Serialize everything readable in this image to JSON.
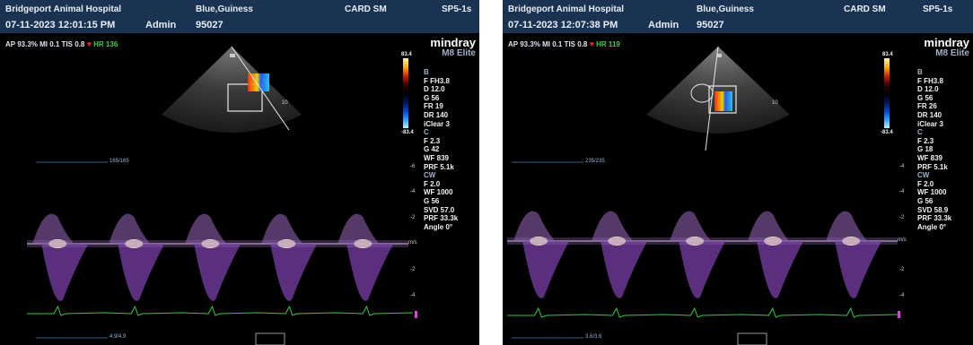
{
  "panels": [
    {
      "hospital": "Bridgeport Animal Hospital",
      "patient": "Blue,Guiness",
      "preset": "CARD SM",
      "probe": "SP5-1s",
      "datetime": "07-11-2023  12:01:15 PM",
      "operator": "Admin",
      "patient_id": "95027",
      "status_prefix": "AP 93.3%  MI 0.1  TIS 0.8",
      "hr": "HR 136",
      "brand": "mindray",
      "model": "M8 Elite",
      "colorbar_top": "83.4",
      "colorbar_bottom": "-83.4",
      "params": [
        {
          "t": "h",
          "v": "B"
        },
        {
          "t": "v",
          "v": "F FH3.8"
        },
        {
          "t": "v",
          "v": "D 12.0"
        },
        {
          "t": "v",
          "v": "G 56"
        },
        {
          "t": "v",
          "v": "FR 19"
        },
        {
          "t": "v",
          "v": "DR 140"
        },
        {
          "t": "v",
          "v": "iClear 3"
        },
        {
          "t": "h",
          "v": "C"
        },
        {
          "t": "v",
          "v": "F 2.3"
        },
        {
          "t": "v",
          "v": "G 42"
        },
        {
          "t": "v",
          "v": "WF 839"
        },
        {
          "t": "v",
          "v": "PRF 5.1k"
        },
        {
          "t": "h",
          "v": "CW"
        },
        {
          "t": "v",
          "v": "F 2.0"
        },
        {
          "t": "v",
          "v": "WF 1000"
        },
        {
          "t": "v",
          "v": "G 56"
        },
        {
          "t": "v",
          "v": "SVD 57.0"
        },
        {
          "t": "v",
          "v": "PRF 33.3k"
        },
        {
          "t": "v",
          "v": "Angle 0°"
        }
      ],
      "depth_label": "165/165",
      "bottom_label": "4.9/4.9",
      "unit": "m/s",
      "ticks_pos": [
        "-6",
        "-4",
        "-2"
      ],
      "ticks_neg": [
        "-2",
        "-4"
      ],
      "sector_tick": "10"
    },
    {
      "hospital": "Bridgeport Animal Hospital",
      "patient": "Blue,Guiness",
      "preset": "CARD SM",
      "probe": "SP5-1s",
      "datetime": "07-11-2023  12:07:38 PM",
      "operator": "Admin",
      "patient_id": "95027",
      "status_prefix": "AP 93.3%  MI 0.1  TIS 0.8",
      "hr": "HR 119",
      "brand": "mindray",
      "model": "M8 Elite",
      "colorbar_top": "83.4",
      "colorbar_bottom": "-83.4",
      "params": [
        {
          "t": "h",
          "v": "B"
        },
        {
          "t": "v",
          "v": "F FH3.8"
        },
        {
          "t": "v",
          "v": "D 12.0"
        },
        {
          "t": "v",
          "v": "G 56"
        },
        {
          "t": "v",
          "v": "FR 26"
        },
        {
          "t": "v",
          "v": "DR 140"
        },
        {
          "t": "v",
          "v": "iClear 3"
        },
        {
          "t": "h",
          "v": "C"
        },
        {
          "t": "v",
          "v": "F 2.3"
        },
        {
          "t": "v",
          "v": "G 18"
        },
        {
          "t": "v",
          "v": "WF 839"
        },
        {
          "t": "v",
          "v": "PRF 5.1k"
        },
        {
          "t": "h",
          "v": "CW"
        },
        {
          "t": "v",
          "v": "F 2.0"
        },
        {
          "t": "v",
          "v": "WF 1000"
        },
        {
          "t": "v",
          "v": "G 56"
        },
        {
          "t": "v",
          "v": "SVD 58.9"
        },
        {
          "t": "v",
          "v": "PRF 33.3k"
        },
        {
          "t": "v",
          "v": "Angle 0°"
        }
      ],
      "depth_label": "235/235",
      "bottom_label": "3.6/3.6",
      "unit": "m/s",
      "ticks_pos": [
        "-4",
        "-4",
        "-2"
      ],
      "ticks_neg": [
        "-2",
        "-4"
      ],
      "sector_tick": "10"
    }
  ],
  "colors": {
    "header_bg": "#1a3352",
    "hr_green": "#34d24a",
    "ecg": "#2ecc40",
    "spectral": "#a35fd0"
  },
  "icons": {
    "heart": "heart-icon",
    "probe_marker": "probe-orientation-marker"
  }
}
